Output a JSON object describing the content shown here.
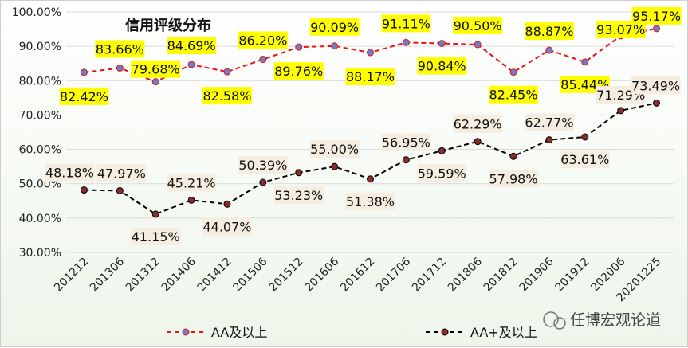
{
  "chart_data": {
    "type": "line",
    "title": "信用评级分布",
    "categories": [
      "201212",
      "201306",
      "201312",
      "201406",
      "201412",
      "201506",
      "201512",
      "201606",
      "201612",
      "201706",
      "201712",
      "201806",
      "201812",
      "201906",
      "201912",
      "202006",
      "20201225"
    ],
    "ylim": [
      30,
      100
    ],
    "yticks": [
      "30.00%",
      "40.00%",
      "50.00%",
      "60.00%",
      "70.00%",
      "80.00%",
      "90.00%",
      "100.00%"
    ],
    "grid": "horizontal",
    "legend_position": "bottom",
    "series": [
      {
        "name": "AA及以上",
        "values": [
          82.42,
          83.66,
          79.68,
          84.69,
          82.58,
          86.2,
          89.76,
          90.09,
          88.17,
          91.11,
          90.84,
          90.5,
          82.45,
          88.87,
          85.44,
          93.07,
          95.17
        ],
        "labels": [
          "82.42%",
          "83.66%",
          "79.68%",
          "84.69%",
          "82.58%",
          "86.20%",
          "89.76%",
          "90.09%",
          "88.17%",
          "91.11%",
          "90.84%",
          "90.50%",
          "82.45%",
          "88.87%",
          "85.44%",
          "93.07%",
          "95.17%"
        ],
        "line_color": "#e8141c",
        "marker_color": "#6b7fc2",
        "label_bg": "#ffff00"
      },
      {
        "name": "AA+及以上",
        "values": [
          48.18,
          47.97,
          41.15,
          45.21,
          44.07,
          50.39,
          53.23,
          55.0,
          51.38,
          56.95,
          59.59,
          62.29,
          57.98,
          62.77,
          63.61,
          71.29,
          73.49
        ],
        "labels": [
          "48.18%",
          "47.97%",
          "41.15%",
          "45.21%",
          "44.07%",
          "50.39%",
          "53.23%",
          "55.00%",
          "51.38%",
          "56.95%",
          "59.59%",
          "62.29%",
          "57.98%",
          "62.77%",
          "63.61%",
          "71.29%",
          "73.49%"
        ],
        "line_color": "#000000",
        "marker_color": "#8b2b2b",
        "label_bg": "#f4ede0"
      }
    ]
  },
  "watermark": "任博宏观论道"
}
